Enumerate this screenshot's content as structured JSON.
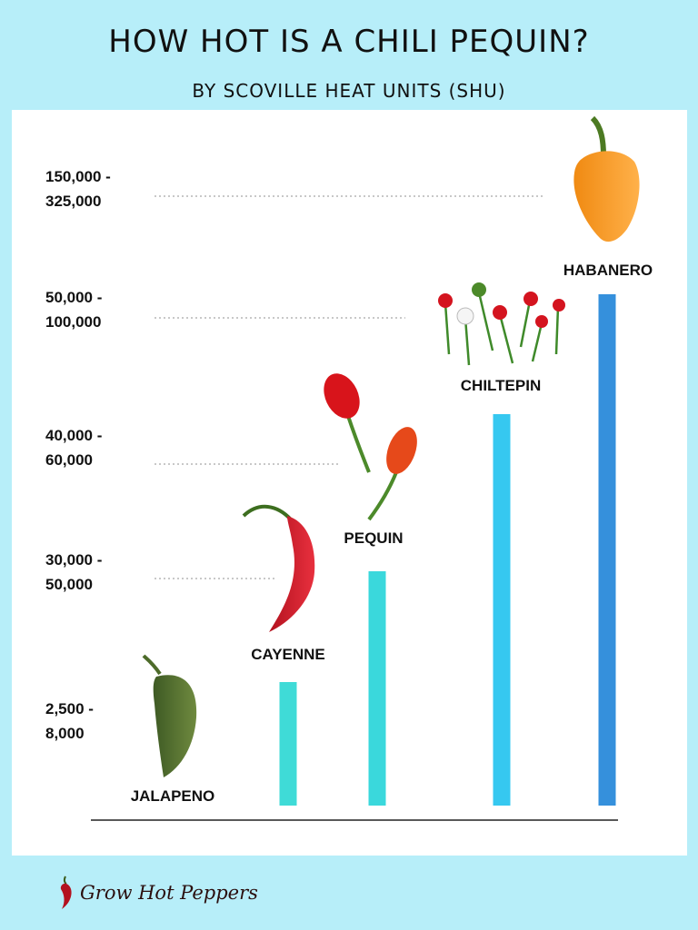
{
  "header": {
    "title": "HOW HOT IS A CHILI PEQUIN?",
    "subtitle": "BY SCOVILLE HEAT UNITS (SHU)"
  },
  "chart_data": {
    "type": "bar",
    "title": "HOW HOT IS A CHILI PEQUIN?",
    "subtitle": "BY SCOVILLE HEAT UNITS (SHU)",
    "categories": [
      "JALAPENO",
      "CAYENNE",
      "PEQUIN",
      "CHILTEPIN",
      "HABANERO"
    ],
    "ranges": [
      {
        "min": 2500,
        "max": 8000
      },
      {
        "min": 30000,
        "max": 50000
      },
      {
        "min": 40000,
        "max": 60000
      },
      {
        "min": 50000,
        "max": 100000
      },
      {
        "min": 150000,
        "max": 325000
      }
    ],
    "y_tick_labels": [
      [
        "2,500 -",
        "8,000"
      ],
      [
        "30,000 -",
        "50,000"
      ],
      [
        "40,000 -",
        "60,000"
      ],
      [
        "50,000 -",
        "100,000"
      ],
      [
        "150,000 -",
        "325,000"
      ]
    ],
    "bar_levels": [
      0,
      1,
      2,
      3,
      4
    ],
    "bar_colors": [
      "#8be9e9",
      "#3fdbd7",
      "#3ad8dc",
      "#36c8f0",
      "#3590dc"
    ],
    "axis": "ordinal ranges",
    "grid": "dotted guide lines at range levels",
    "legend": "none"
  },
  "logo": {
    "text": "Grow Hot Peppers",
    "icon": "pepper-icon"
  },
  "colors": {
    "background": "#b7eef9",
    "panel": "#ffffff"
  }
}
